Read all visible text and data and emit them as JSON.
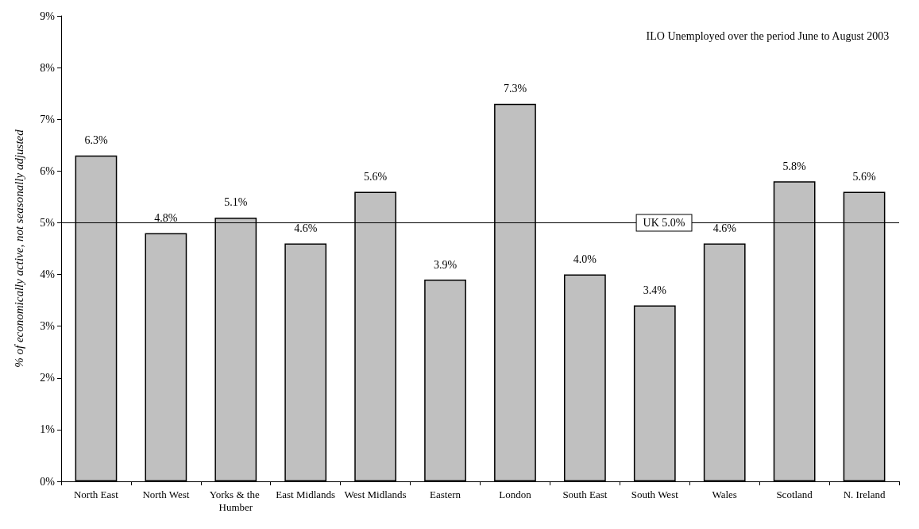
{
  "chart_data": {
    "type": "bar",
    "ylabel": "% of economically active, not seasonally adjusted",
    "annotations": [
      "ILO Unemployed over the period June to August 2003"
    ],
    "categories": [
      "North East",
      "North West",
      "Yorks & the Humber",
      "East Midlands",
      "West Midlands",
      "Eastern",
      "London",
      "South East",
      "South West",
      "Wales",
      "Scotland",
      "N. Ireland"
    ],
    "values": [
      6.3,
      4.8,
      5.1,
      4.6,
      5.6,
      3.9,
      7.3,
      4.0,
      3.4,
      4.6,
      5.8,
      5.6
    ],
    "value_labels": [
      "6.3%",
      "4.8%",
      "5.1%",
      "4.6%",
      "5.6%",
      "3.9%",
      "7.3%",
      "4.0%",
      "3.4%",
      "4.6%",
      "5.8%",
      "5.6%"
    ],
    "color": "#c0c0c0",
    "ylim": [
      0,
      9
    ],
    "yticks": [
      {
        "value": 0,
        "label": "0%"
      },
      {
        "value": 1,
        "label": "1%"
      },
      {
        "value": 2,
        "label": "2%"
      },
      {
        "value": 3,
        "label": "3%"
      },
      {
        "value": 4,
        "label": "4%"
      },
      {
        "value": 5,
        "label": "5%"
      },
      {
        "value": 6,
        "label": "6%"
      },
      {
        "value": 7,
        "label": "7%"
      },
      {
        "value": 8,
        "label": "8%"
      },
      {
        "value": 9,
        "label": "9%"
      }
    ],
    "ref_lines": [
      {
        "axis": "y",
        "value": 5,
        "label": "UK 5.0%",
        "color": "#000000",
        "line_style": "solid"
      }
    ],
    "grid": false
  }
}
